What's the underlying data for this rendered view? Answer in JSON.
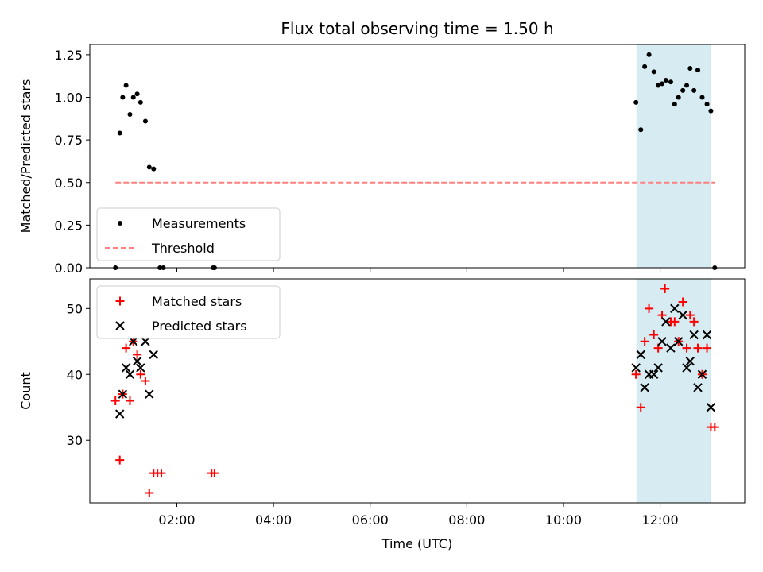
{
  "title": "Flux total observing time = 1.50 h",
  "xlabel": "Time (UTC)",
  "chart_data": [
    {
      "type": "scatter",
      "panel": "top",
      "ylabel": "Matched/Predicted stars",
      "xlim": [
        0.2,
        13.75
      ],
      "ylim": [
        0,
        1.31
      ],
      "yticks": [
        0,
        0.25,
        0.5,
        0.75,
        1.0,
        1.25
      ],
      "ytick_labels": [
        "0.00",
        "0.25",
        "0.50",
        "0.75",
        "1.00",
        "1.25"
      ],
      "highlight_region": [
        11.52,
        13.05
      ],
      "legend_position": "lower-left",
      "series": [
        {
          "name": "Measurements",
          "marker": "dot",
          "color": "#000000",
          "points": [
            [
              0.73,
              0.0
            ],
            [
              0.82,
              0.79
            ],
            [
              0.88,
              1.0
            ],
            [
              0.95,
              1.07
            ],
            [
              1.03,
              0.9
            ],
            [
              1.1,
              1.0
            ],
            [
              1.18,
              1.02
            ],
            [
              1.25,
              0.97
            ],
            [
              1.35,
              0.86
            ],
            [
              1.43,
              0.59
            ],
            [
              1.52,
              0.58
            ],
            [
              1.65,
              0.0
            ],
            [
              1.72,
              0.0
            ],
            [
              2.75,
              0.0
            ],
            [
              2.78,
              0.0
            ],
            [
              11.5,
              0.97
            ],
            [
              11.6,
              0.81
            ],
            [
              11.68,
              1.18
            ],
            [
              11.77,
              1.25
            ],
            [
              11.87,
              1.15
            ],
            [
              11.96,
              1.07
            ],
            [
              12.04,
              1.08
            ],
            [
              12.12,
              1.1
            ],
            [
              12.22,
              1.09
            ],
            [
              12.3,
              0.96
            ],
            [
              12.38,
              1.0
            ],
            [
              12.47,
              1.04
            ],
            [
              12.55,
              1.07
            ],
            [
              12.62,
              1.17
            ],
            [
              12.7,
              1.04
            ],
            [
              12.78,
              1.16
            ],
            [
              12.87,
              1.0
            ],
            [
              12.97,
              0.96
            ],
            [
              13.05,
              0.92
            ],
            [
              13.13,
              0.0
            ]
          ]
        },
        {
          "name": "Threshold",
          "marker": "dashed-line",
          "color": "#ff7f7f",
          "points": [
            [
              0.73,
              0.5
            ],
            [
              13.13,
              0.5
            ]
          ]
        }
      ]
    },
    {
      "type": "scatter",
      "panel": "bottom",
      "ylabel": "Count",
      "xlim": [
        0.2,
        13.75
      ],
      "ylim": [
        20.5,
        54.5
      ],
      "yticks": [
        30,
        40,
        50
      ],
      "xticks": [
        2,
        4,
        6,
        8,
        10,
        12
      ],
      "xtick_labels": [
        "02:00",
        "04:00",
        "06:00",
        "08:00",
        "10:00",
        "12:00"
      ],
      "highlight_region": [
        11.52,
        13.05
      ],
      "legend_position": "upper-left",
      "series": [
        {
          "name": "Matched stars",
          "marker": "plus",
          "color": "#ff0000",
          "points": [
            [
              0.73,
              36
            ],
            [
              0.82,
              27
            ],
            [
              0.88,
              37
            ],
            [
              0.95,
              44
            ],
            [
              1.03,
              36
            ],
            [
              1.1,
              45
            ],
            [
              1.18,
              43
            ],
            [
              1.25,
              40
            ],
            [
              1.35,
              39
            ],
            [
              1.43,
              22
            ],
            [
              1.52,
              25
            ],
            [
              1.6,
              25
            ],
            [
              1.68,
              25
            ],
            [
              2.72,
              25
            ],
            [
              2.78,
              25
            ],
            [
              11.5,
              40
            ],
            [
              11.6,
              35
            ],
            [
              11.68,
              45
            ],
            [
              11.77,
              50
            ],
            [
              11.87,
              46
            ],
            [
              11.96,
              44
            ],
            [
              12.04,
              49
            ],
            [
              12.1,
              53
            ],
            [
              12.22,
              48
            ],
            [
              12.3,
              48
            ],
            [
              12.38,
              45
            ],
            [
              12.47,
              51
            ],
            [
              12.55,
              44
            ],
            [
              12.62,
              49
            ],
            [
              12.7,
              48
            ],
            [
              12.78,
              44
            ],
            [
              12.87,
              40
            ],
            [
              12.97,
              44
            ],
            [
              13.05,
              32
            ],
            [
              13.13,
              32
            ]
          ]
        },
        {
          "name": "Predicted stars",
          "marker": "x",
          "color": "#000000",
          "points": [
            [
              0.82,
              34
            ],
            [
              0.88,
              37
            ],
            [
              0.95,
              41
            ],
            [
              1.03,
              40
            ],
            [
              1.1,
              45
            ],
            [
              1.18,
              42
            ],
            [
              1.25,
              41
            ],
            [
              1.35,
              45
            ],
            [
              1.43,
              37
            ],
            [
              1.52,
              43
            ],
            [
              11.5,
              41
            ],
            [
              11.6,
              43
            ],
            [
              11.68,
              38
            ],
            [
              11.77,
              40
            ],
            [
              11.87,
              40
            ],
            [
              11.96,
              41
            ],
            [
              12.04,
              45
            ],
            [
              12.12,
              48
            ],
            [
              12.22,
              44
            ],
            [
              12.3,
              50
            ],
            [
              12.38,
              45
            ],
            [
              12.47,
              49
            ],
            [
              12.55,
              41
            ],
            [
              12.62,
              42
            ],
            [
              12.7,
              46
            ],
            [
              12.78,
              38
            ],
            [
              12.87,
              40
            ],
            [
              12.97,
              46
            ],
            [
              13.05,
              35
            ]
          ]
        }
      ]
    }
  ]
}
